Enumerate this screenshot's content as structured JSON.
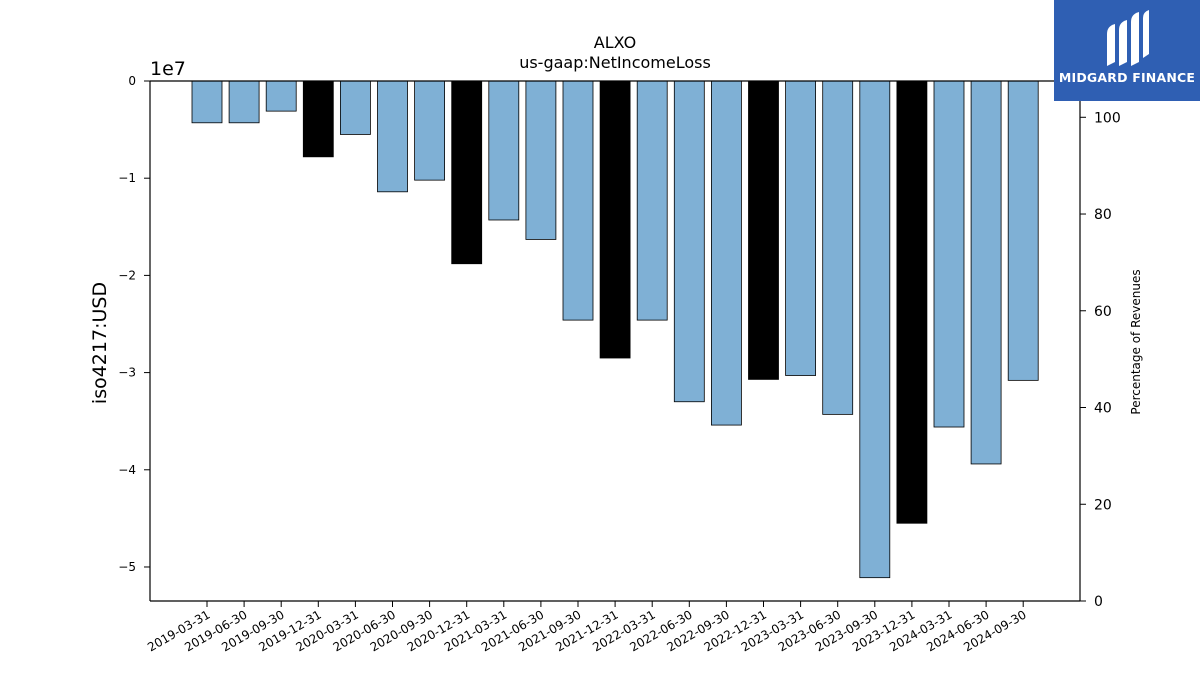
{
  "chart_data": {
    "type": "bar",
    "title": "ALXO",
    "subtitle": "us-gaap:NetIncomeLoss",
    "ylabel": "iso4217:USD",
    "y2label": "Percentage of Revenues",
    "y_offset_label": "1e7",
    "ylim": [
      -53500000,
      0
    ],
    "y_ticks": [
      0,
      -10000000,
      -20000000,
      -30000000,
      -40000000,
      -50000000
    ],
    "y_tick_labels": [
      "0",
      "−1",
      "−2",
      "−3",
      "−4",
      "−5"
    ],
    "y2lim": [
      0,
      107.5
    ],
    "y2_ticks": [
      0,
      20,
      40,
      60,
      80,
      100
    ],
    "y2_tick_labels": [
      "0",
      "20",
      "40",
      "60",
      "80",
      "100"
    ],
    "categories": [
      "2019-03-31",
      "2019-06-30",
      "2019-09-30",
      "2019-12-31",
      "2020-03-31",
      "2020-06-30",
      "2020-09-30",
      "2020-12-31",
      "2021-03-31",
      "2021-06-30",
      "2021-09-30",
      "2021-12-31",
      "2022-03-31",
      "2022-06-30",
      "2022-09-30",
      "2022-12-31",
      "2023-03-31",
      "2023-06-30",
      "2023-09-30",
      "2023-12-31",
      "2024-03-31",
      "2024-06-30",
      "2024-09-30"
    ],
    "values": [
      -4300000,
      -4300000,
      -3100000,
      -7800000,
      -5500000,
      -11400000,
      -10200000,
      -18800000,
      -14300000,
      -16300000,
      -24600000,
      -28500000,
      -24600000,
      -33000000,
      -35400000,
      -30700000,
      -30300000,
      -34300000,
      -51100000,
      -45500000,
      -35600000,
      -39400000,
      -30800000
    ],
    "fiscal_year_end": [
      false,
      false,
      false,
      true,
      false,
      false,
      false,
      true,
      false,
      false,
      false,
      true,
      false,
      false,
      false,
      true,
      false,
      false,
      false,
      true,
      false,
      false,
      false
    ],
    "colors": {
      "quarter": "#7fb0d5",
      "year_end": "#000000",
      "edge": "#000000"
    }
  },
  "logo": {
    "text": "MIDGARD FINANCE",
    "background": "#2f5fb3"
  }
}
